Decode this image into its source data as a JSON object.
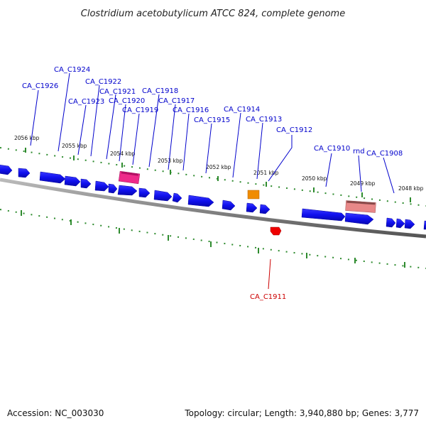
{
  "title": "Clostridium acetobutylicum ATCC 824, complete genome",
  "footer": {
    "accession": "Accession: NC_003030",
    "topology": "Topology: circular; Length: 3,940,880 bp; Genes: 3,777"
  },
  "colors": {
    "forward_gene": "#1010ee",
    "backbone": "#888888",
    "tick_forward": "#2e8b2e",
    "trna": "#ee2a8a",
    "rrna_like": "#e88888",
    "misc_feature": "#f08c00",
    "reverse_gene": "#ee0000",
    "forward_label": "#0000cc",
    "reverse_label": "#cc0000"
  },
  "kbp_labels": [
    "2056 kbp",
    "2055 kbp",
    "2054 kbp",
    "2053 kbp",
    "2052 kbp",
    "2051 kbp",
    "2050 kbp",
    "2049 kbp",
    "2048 kbp"
  ],
  "gene_labels": [
    "CA_C1926",
    "CA_C1924",
    "CA_C1923",
    "CA_C1922",
    "CA_C1921",
    "CA_C1920",
    "CA_C1919",
    "CA_C1918",
    "CA_C1917",
    "CA_C1916",
    "CA_C1915",
    "CA_C1914",
    "CA_C1913",
    "CA_C1912",
    "CA_C1910",
    "rnd",
    "CA_C1908",
    "CA_C1911"
  ]
}
